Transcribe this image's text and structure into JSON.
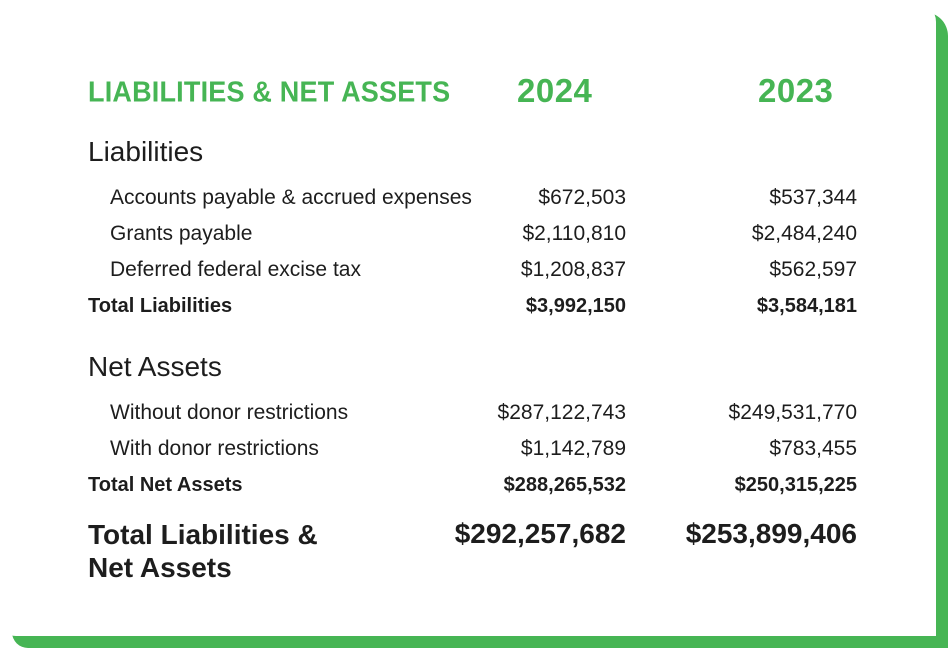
{
  "header": {
    "title": "LIABILITIES & NET ASSETS",
    "year_1": "2024",
    "year_2": "2023"
  },
  "accent_color": "#46b554",
  "liabilities": {
    "heading": "Liabilities",
    "rows": [
      {
        "label": "Accounts payable & accrued expenses",
        "v2024": "$672,503",
        "v2023": "$537,344"
      },
      {
        "label": "Grants payable",
        "v2024": "$2,110,810",
        "v2023": "$2,484,240"
      },
      {
        "label": "Deferred federal excise tax",
        "v2024": "$1,208,837",
        "v2023": "$562,597"
      }
    ],
    "total": {
      "label": "Total Liabilities",
      "v2024": "$3,992,150",
      "v2023": "$3,584,181"
    }
  },
  "net_assets": {
    "heading": "Net Assets",
    "rows": [
      {
        "label": "Without donor restrictions",
        "v2024": "$287,122,743",
        "v2023": "$249,531,770"
      },
      {
        "label": "With donor restrictions",
        "v2024": "$1,142,789",
        "v2023": "$783,455"
      }
    ],
    "total": {
      "label": "Total Net Assets",
      "v2024": "$288,265,532",
      "v2023": "$250,315,225"
    }
  },
  "grand_total": {
    "label_line_1": "Total Liabilities &",
    "label_line_2": "Net Assets",
    "v2024": "$292,257,682",
    "v2023": "$253,899,406"
  }
}
